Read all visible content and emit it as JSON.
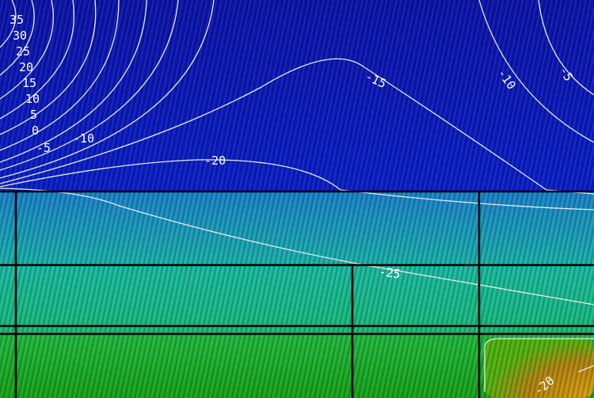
{
  "contour_labels": {
    "left_stack": [
      "35",
      "30",
      "25",
      "20",
      "15",
      "10",
      "5",
      "0",
      "-5",
      "-10"
    ],
    "top_mid": "-15",
    "top_right_a": "-10",
    "top_right_b": "-5",
    "mid": "-20",
    "lower": "-25",
    "bottom_right": "-20"
  },
  "colors": {
    "top_region": "#0a1ab8",
    "middle_region": "#1aa8b0",
    "lower_middle": "#1ab890",
    "bottom_region": "#1ab020",
    "corner_region": "#c89010",
    "contour": "#e8e8e8",
    "grid": "#000000"
  }
}
